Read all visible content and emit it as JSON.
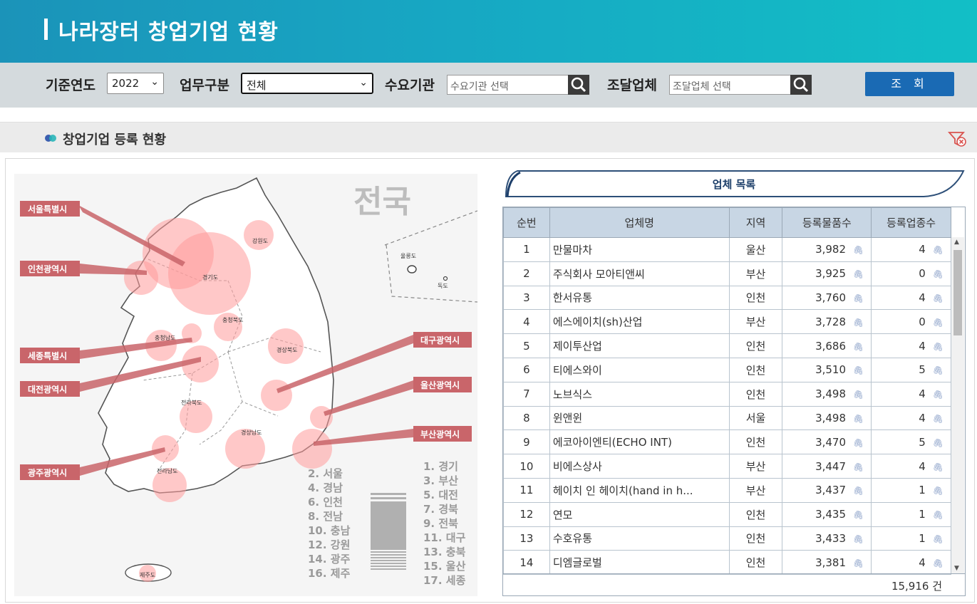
{
  "header": {
    "title": "나라장터 창업기업 현황"
  },
  "filters": {
    "year_label": "기준연도",
    "year_value": "2022",
    "biz_label": "업무구분",
    "biz_value": "전체",
    "demand_label": "수요기관",
    "demand_placeholder": "수요기관 선택",
    "supplier_label": "조달업체",
    "supplier_placeholder": "조달업체 선택",
    "search_label": "조 회"
  },
  "section": {
    "title": "창업기업 등록 현황"
  },
  "map": {
    "heading": "전국",
    "region_labels": [
      "서울특별시",
      "인천광역시",
      "세종특별시",
      "대전광역시",
      "광주광역시",
      "대구광역시",
      "울산광역시",
      "부산광역시"
    ],
    "province_labels": [
      "경기도",
      "강원도",
      "충청북도",
      "충청남도",
      "경상북도",
      "전라북도",
      "경상남도",
      "전라남도",
      "제주도",
      "울릉도",
      "독도"
    ],
    "legend_left": [
      "2. 서울",
      "4. 경남",
      "6. 인천",
      "8. 전남",
      "10. 충남",
      "12. 강원",
      "14. 광주",
      "16. 제주"
    ],
    "legend_right": [
      "1. 경기",
      "3. 부산",
      "5. 대전",
      "7. 경북",
      "9. 전북",
      "11. 대구",
      "13. 충북",
      "15. 울산",
      "17. 세종"
    ]
  },
  "list": {
    "banner": "업체 목록",
    "columns": [
      "순번",
      "업체명",
      "지역",
      "등록물품수",
      "등록업종수"
    ],
    "rows": [
      {
        "no": "1",
        "name": "만물마차",
        "region": "울산",
        "items": "3,982",
        "types": "4"
      },
      {
        "no": "2",
        "name": "주식회사 모아티앤씨",
        "region": "부산",
        "items": "3,925",
        "types": "0"
      },
      {
        "no": "3",
        "name": "한서유통",
        "region": "인천",
        "items": "3,760",
        "types": "4"
      },
      {
        "no": "4",
        "name": "에스에이치(sh)산업",
        "region": "부산",
        "items": "3,728",
        "types": "0"
      },
      {
        "no": "5",
        "name": "제이투산업",
        "region": "인천",
        "items": "3,686",
        "types": "4"
      },
      {
        "no": "6",
        "name": "티에스와이",
        "region": "인천",
        "items": "3,510",
        "types": "5"
      },
      {
        "no": "7",
        "name": "노브식스",
        "region": "인천",
        "items": "3,498",
        "types": "4"
      },
      {
        "no": "8",
        "name": "윈앤윈",
        "region": "서울",
        "items": "3,498",
        "types": "4"
      },
      {
        "no": "9",
        "name": "에코아이엔티(ECHO INT)",
        "region": "인천",
        "items": "3,470",
        "types": "5"
      },
      {
        "no": "10",
        "name": "비에스상사",
        "region": "부산",
        "items": "3,447",
        "types": "4"
      },
      {
        "no": "11",
        "name": "헤이치 인 헤이치(hand in h...",
        "region": "부산",
        "items": "3,437",
        "types": "1"
      },
      {
        "no": "12",
        "name": "연모",
        "region": "인천",
        "items": "3,435",
        "types": "1"
      },
      {
        "no": "13",
        "name": "수호유통",
        "region": "인천",
        "items": "3,433",
        "types": "1"
      },
      {
        "no": "14",
        "name": "디엠글로벌",
        "region": "인천",
        "items": "3,381",
        "types": "4"
      }
    ],
    "total": "15,916 건"
  },
  "colors": {
    "accent": "#1a6ab4",
    "header_start": "#1b93b9",
    "header_end": "#12bfc6",
    "label_red": "#c9656a",
    "bubble": "#ff9a9a"
  },
  "icons": {
    "search": "magnifier-icon",
    "filter_reset": "filter-reset-icon",
    "clip": "paperclip-icon"
  }
}
